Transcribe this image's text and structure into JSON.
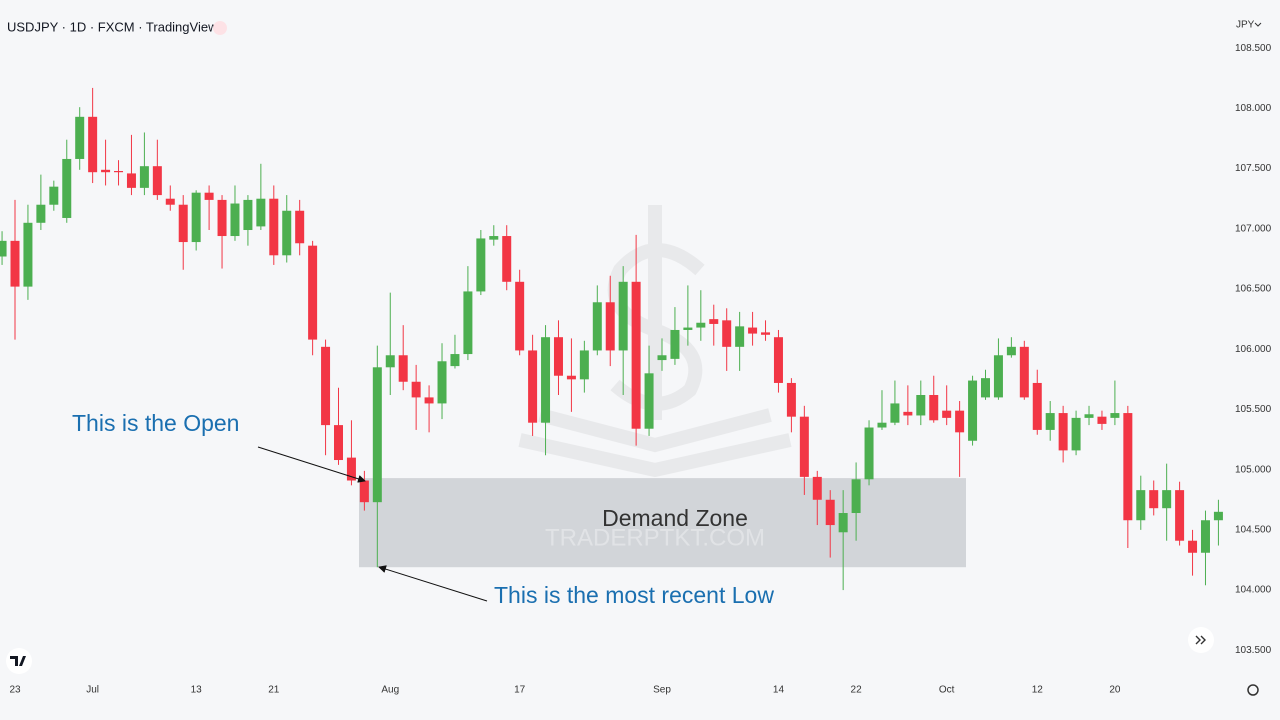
{
  "chart_data": {
    "type": "candlestick",
    "title": "USDJPY · 1D · FXCM · TradingView",
    "currency": "JPY",
    "watermark": "TRADERPTKT.COM",
    "zone": {
      "label": "Demand Zone",
      "high": 104.93,
      "low": 104.19
    },
    "annotations": [
      "This is the Open",
      "This is the most recent Low"
    ],
    "up_color": "#4caf50",
    "down_color": "#f23645",
    "categories": [
      null,
      "23",
      null,
      null,
      null,
      null,
      null,
      "Jul",
      null,
      null,
      null,
      null,
      null,
      null,
      null,
      "13",
      null,
      null,
      null,
      null,
      null,
      "21",
      null,
      null,
      null,
      null,
      null,
      null,
      null,
      null,
      "Aug",
      null,
      null,
      null,
      null,
      null,
      null,
      null,
      null,
      null,
      "17",
      null,
      null,
      null,
      null,
      null,
      null,
      null,
      null,
      null,
      null,
      "Sep",
      null,
      null,
      null,
      null,
      null,
      null,
      null,
      null,
      "14",
      null,
      null,
      null,
      null,
      null,
      "22",
      null,
      null,
      null,
      null,
      null,
      null,
      "Oct",
      null,
      null,
      null,
      null,
      null,
      null,
      "12",
      null,
      null,
      null,
      null,
      null,
      "20",
      null,
      null,
      null,
      null,
      null,
      null,
      null,
      null
    ],
    "open": [
      106.77,
      106.9,
      106.52,
      107.05,
      107.2,
      107.09,
      107.58,
      107.93,
      107.49,
      107.48,
      107.46,
      107.34,
      107.52,
      107.25,
      107.2,
      106.89,
      107.3,
      107.24,
      106.94,
      106.99,
      107.02,
      107.25,
      106.78,
      107.15,
      106.86,
      106.02,
      105.37,
      105.1,
      104.91,
      104.73,
      105.85,
      105.95,
      105.73,
      105.6,
      105.55,
      105.86,
      105.96,
      106.48,
      106.91,
      106.94,
      106.56,
      105.99,
      105.39,
      106.1,
      105.78,
      105.75,
      105.99,
      106.39,
      105.99,
      106.56,
      105.34,
      105.91,
      105.92,
      106.16,
      106.18,
      106.25,
      106.24,
      106.02,
      106.18,
      106.14,
      106.1,
      105.72,
      105.44,
      104.94,
      104.75,
      104.48,
      104.64,
      104.92,
      105.35,
      105.39,
      105.48,
      105.45,
      105.62,
      105.49,
      105.49,
      105.24,
      105.6,
      105.6,
      105.95,
      106.02,
      105.72,
      105.33,
      105.47,
      105.16,
      105.43,
      105.44,
      105.43,
      105.47,
      104.58,
      104.83,
      104.68,
      104.83,
      104.41,
      104.31,
      104.58
    ],
    "high": [
      106.98,
      107.24,
      107.2,
      107.45,
      107.4,
      107.74,
      108.01,
      108.17,
      107.74,
      107.57,
      107.78,
      107.8,
      107.74,
      107.36,
      107.28,
      107.32,
      107.36,
      107.28,
      107.36,
      107.28,
      107.54,
      107.36,
      107.28,
      107.24,
      106.9,
      106.08,
      105.68,
      105.41,
      104.99,
      106.03,
      106.47,
      106.2,
      105.87,
      105.7,
      106.05,
      106.12,
      106.69,
      106.99,
      107.03,
      107.03,
      106.66,
      106.12,
      106.2,
      106.24,
      106.09,
      106.07,
      106.53,
      106.61,
      106.69,
      106.95,
      106.03,
      106.09,
      106.35,
      106.53,
      106.49,
      106.37,
      106.34,
      106.31,
      106.31,
      106.24,
      106.16,
      105.76,
      105.53,
      104.99,
      104.83,
      104.83,
      105.06,
      105.41,
      105.66,
      105.74,
      105.7,
      105.74,
      105.78,
      105.7,
      105.57,
      105.78,
      105.83,
      106.09,
      106.1,
      106.07,
      105.83,
      105.57,
      105.53,
      105.49,
      105.53,
      105.49,
      105.74,
      105.53,
      104.95,
      104.91,
      105.05,
      104.9,
      104.5,
      104.66,
      104.75
    ],
    "low": [
      106.7,
      106.08,
      106.41,
      106.99,
      107.15,
      107.05,
      107.49,
      107.38,
      107.36,
      107.36,
      107.28,
      107.28,
      107.24,
      107.15,
      106.66,
      106.82,
      106.99,
      106.67,
      106.9,
      106.86,
      106.99,
      106.7,
      106.72,
      106.78,
      105.95,
      105.12,
      105.04,
      104.87,
      104.66,
      104.19,
      105.62,
      105.66,
      105.33,
      105.31,
      105.42,
      105.84,
      105.91,
      106.45,
      106.86,
      106.49,
      105.95,
      105.28,
      105.12,
      105.62,
      105.48,
      105.64,
      105.95,
      105.86,
      105.62,
      105.2,
      105.28,
      105.82,
      105.87,
      106.03,
      106.07,
      106.03,
      105.82,
      105.82,
      106.03,
      106.07,
      105.64,
      105.31,
      104.79,
      104.54,
      104.27,
      104.0,
      104.41,
      104.87,
      105.33,
      105.37,
      105.37,
      105.37,
      105.39,
      105.37,
      104.94,
      105.2,
      105.58,
      105.58,
      105.93,
      105.58,
      105.29,
      105.24,
      105.06,
      105.12,
      105.37,
      105.33,
      105.37,
      104.35,
      104.5,
      104.62,
      104.41,
      104.37,
      104.12,
      104.04,
      104.37
    ],
    "close": [
      106.9,
      106.52,
      107.05,
      107.2,
      107.35,
      107.58,
      107.93,
      107.47,
      107.47,
      107.47,
      107.34,
      107.52,
      107.28,
      107.2,
      106.89,
      107.3,
      107.24,
      106.94,
      107.21,
      107.24,
      107.25,
      106.78,
      107.15,
      106.88,
      106.08,
      105.37,
      105.08,
      104.91,
      104.73,
      105.85,
      105.95,
      105.73,
      105.6,
      105.55,
      105.9,
      105.96,
      106.48,
      106.92,
      106.94,
      106.56,
      105.99,
      105.39,
      106.1,
      105.78,
      105.75,
      105.99,
      106.39,
      105.99,
      106.56,
      105.34,
      105.8,
      105.95,
      106.16,
      106.18,
      106.22,
      106.21,
      106.02,
      106.19,
      106.13,
      106.12,
      105.72,
      105.44,
      104.94,
      104.75,
      104.54,
      104.64,
      104.92,
      105.35,
      105.39,
      105.55,
      105.45,
      105.62,
      105.41,
      105.43,
      105.31,
      105.74,
      105.76,
      105.95,
      106.02,
      105.6,
      105.33,
      105.47,
      105.16,
      105.43,
      105.46,
      105.38,
      105.47,
      104.58,
      104.83,
      104.68,
      104.83,
      104.41,
      104.31,
      104.58,
      104.65
    ],
    "ylim": [
      103.27,
      108.9
    ],
    "yticks": [
      {
        "value": 103.5,
        "label": "103.500"
      },
      {
        "value": 104,
        "label": "104.000"
      },
      {
        "value": 104.5,
        "label": "104.500"
      },
      {
        "value": 105,
        "label": "105.000"
      },
      {
        "value": 105.5,
        "label": "105.500"
      },
      {
        "value": 106,
        "label": "106.000"
      },
      {
        "value": 106.5,
        "label": "106.500"
      },
      {
        "value": 107,
        "label": "107.000"
      },
      {
        "value": 107.5,
        "label": "107.500"
      },
      {
        "value": 108,
        "label": "108.000"
      },
      {
        "value": 108.5,
        "label": "108.500"
      }
    ]
  }
}
